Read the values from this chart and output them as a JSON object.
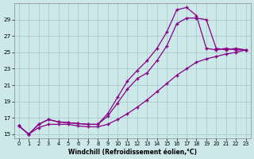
{
  "bg_color": "#cce8e8",
  "grid_color": "#aacccc",
  "line_color": "#880088",
  "marker": "+",
  "xlabel": "Windchill (Refroidissement éolien,°C)",
  "xlim": [
    -0.5,
    23.5
  ],
  "ylim": [
    14.5,
    31.0
  ],
  "yticks": [
    15,
    17,
    19,
    21,
    23,
    25,
    27,
    29
  ],
  "xticks": [
    0,
    1,
    2,
    3,
    4,
    5,
    6,
    7,
    8,
    9,
    10,
    11,
    12,
    13,
    14,
    15,
    16,
    17,
    18,
    19,
    20,
    21,
    22,
    23
  ],
  "series1_x": [
    0,
    1,
    2,
    3,
    4,
    5,
    6,
    7,
    8,
    9,
    10,
    11,
    12,
    13,
    14,
    15,
    16,
    17,
    18,
    19,
    20,
    21,
    22,
    23
  ],
  "series1_y": [
    16.0,
    15.0,
    16.2,
    16.8,
    16.5,
    16.4,
    16.3,
    16.2,
    16.2,
    17.5,
    19.5,
    21.5,
    22.8,
    24.0,
    25.5,
    27.5,
    30.2,
    30.5,
    29.5,
    25.5,
    25.3,
    25.5,
    25.3,
    25.3
  ],
  "series2_x": [
    0,
    1,
    2,
    3,
    4,
    5,
    6,
    7,
    8,
    9,
    10,
    11,
    12,
    13,
    14,
    15,
    16,
    17,
    18,
    19,
    20,
    21,
    22,
    23
  ],
  "series2_y": [
    16.0,
    15.0,
    16.2,
    16.8,
    16.5,
    16.4,
    16.3,
    16.2,
    16.2,
    17.2,
    18.8,
    20.5,
    21.8,
    22.5,
    24.0,
    25.8,
    28.5,
    29.2,
    29.2,
    29.0,
    25.5,
    25.3,
    25.5,
    25.3
  ],
  "series3_x": [
    0,
    1,
    2,
    3,
    4,
    5,
    6,
    7,
    8,
    9,
    10,
    11,
    12,
    13,
    14,
    15,
    16,
    17,
    18,
    19,
    20,
    21,
    22,
    23
  ],
  "series3_y": [
    16.0,
    15.0,
    15.8,
    16.2,
    16.2,
    16.2,
    16.0,
    15.9,
    15.9,
    16.2,
    16.8,
    17.5,
    18.3,
    19.2,
    20.2,
    21.2,
    22.2,
    23.0,
    23.8,
    24.2,
    24.5,
    24.8,
    25.0,
    25.3
  ]
}
